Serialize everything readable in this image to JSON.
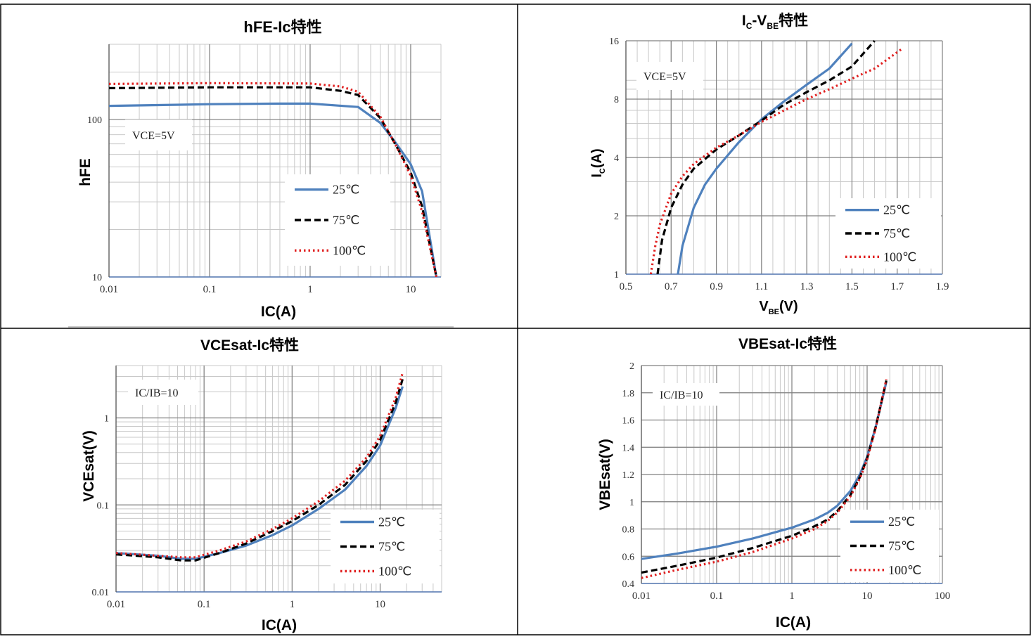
{
  "page": {
    "layout": "2x2 grid of datasheet characteristic curves"
  },
  "chart_data": [
    {
      "id": "hfe",
      "type": "line",
      "title": "hFE-Ic特性",
      "xlabel": "IC(A)",
      "ylabel": "hFE",
      "xscale": "log",
      "yscale": "log",
      "xlim": [
        0.01,
        20
      ],
      "ylim": [
        10,
        300
      ],
      "xticks": [
        0.01,
        0.1,
        1,
        10
      ],
      "xticklabels": [
        "0.01",
        "0.1",
        "1",
        "10"
      ],
      "yticks": [
        10,
        100
      ],
      "yticklabels": [
        "10",
        "100"
      ],
      "grid": true,
      "annotation": "VCE=5V",
      "legend_position": "bottom-right",
      "series": [
        {
          "name": "25℃",
          "color": "#4f81bd",
          "style": "solid",
          "x": [
            0.01,
            0.05,
            0.1,
            0.5,
            1,
            3,
            5,
            7,
            10,
            13,
            18
          ],
          "y": [
            122,
            124,
            125,
            126,
            126,
            120,
            95,
            72,
            52,
            35,
            10
          ]
        },
        {
          "name": "75℃",
          "color": "#000000",
          "style": "dashed",
          "x": [
            0.01,
            0.1,
            1,
            2,
            3,
            5,
            7,
            10,
            13,
            18
          ],
          "y": [
            158,
            160,
            160,
            152,
            143,
            102,
            70,
            46,
            28,
            10
          ]
        },
        {
          "name": "100℃",
          "color": "#e02020",
          "style": "dotted",
          "x": [
            0.01,
            0.1,
            1,
            2,
            3,
            5,
            7,
            10,
            13,
            18
          ],
          "y": [
            168,
            170,
            169,
            162,
            150,
            104,
            70,
            44,
            26,
            10
          ]
        }
      ]
    },
    {
      "id": "ic-vbe",
      "type": "line",
      "title": "Ic-Vbe特性",
      "xlabel": "VBE(V)",
      "ylabel": "Ic(A)",
      "xscale": "linear",
      "yscale": "log",
      "xlim": [
        0.5,
        1.9
      ],
      "ylim": [
        1,
        16
      ],
      "xticks": [
        0.5,
        0.7,
        0.9,
        1.1,
        1.3,
        1.5,
        1.7,
        1.9
      ],
      "xticklabels": [
        "0.5",
        "0.7",
        "0.9",
        "1.1",
        "1.3",
        "1.5",
        "1.7",
        "1.9"
      ],
      "yticks": [
        1,
        2,
        4,
        8,
        16
      ],
      "yticklabels": [
        "1",
        "2",
        "4",
        "8",
        "16"
      ],
      "grid": true,
      "annotation": "VCE=5V",
      "legend_position": "bottom-right",
      "series": [
        {
          "name": "25℃",
          "color": "#4f81bd",
          "style": "solid",
          "x": [
            0.73,
            0.75,
            0.8,
            0.85,
            0.9,
            1.0,
            1.1,
            1.2,
            1.3,
            1.4,
            1.5
          ],
          "y": [
            1.0,
            1.4,
            2.2,
            2.9,
            3.5,
            4.8,
            6.3,
            7.8,
            9.5,
            11.5,
            15.5
          ]
        },
        {
          "name": "75℃",
          "color": "#000000",
          "style": "dashed",
          "x": [
            0.64,
            0.66,
            0.7,
            0.75,
            0.8,
            0.9,
            1.0,
            1.1,
            1.2,
            1.3,
            1.4,
            1.5,
            1.6
          ],
          "y": [
            1.0,
            1.5,
            2.2,
            2.9,
            3.5,
            4.4,
            5.2,
            6.2,
            7.5,
            8.7,
            10.0,
            11.8,
            16
          ]
        },
        {
          "name": "100℃",
          "color": "#e02020",
          "style": "dotted",
          "x": [
            0.61,
            0.63,
            0.65,
            0.7,
            0.75,
            0.8,
            0.9,
            1.0,
            1.1,
            1.2,
            1.3,
            1.4,
            1.5,
            1.6,
            1.72
          ],
          "y": [
            1.0,
            1.4,
            1.8,
            2.6,
            3.2,
            3.7,
            4.5,
            5.2,
            6.1,
            7.0,
            8.0,
            9.0,
            10.2,
            11.5,
            14.5
          ]
        }
      ]
    },
    {
      "id": "vcesat",
      "type": "line",
      "title": "VCEsat-Ic特性",
      "xlabel": "IC(A)",
      "ylabel": "VCEsat(V)",
      "xscale": "log",
      "yscale": "log",
      "xlim": [
        0.01,
        50
      ],
      "ylim": [
        0.01,
        4
      ],
      "xticks": [
        0.01,
        0.1,
        1,
        10
      ],
      "xticklabels": [
        "0.01",
        "0.1",
        "1",
        "10"
      ],
      "yticks": [
        0.01,
        0.1,
        1
      ],
      "yticklabels": [
        "0.01",
        "0.1",
        "1"
      ],
      "grid": true,
      "annotation": "IC/IB=10",
      "legend_position": "bottom-right",
      "series": [
        {
          "name": "25℃",
          "color": "#4f81bd",
          "style": "solid",
          "x": [
            0.01,
            0.03,
            0.055,
            0.08,
            0.15,
            0.3,
            0.6,
            1,
            2,
            4,
            7,
            10,
            15,
            18
          ],
          "y": [
            0.028,
            0.026,
            0.024,
            0.024,
            0.028,
            0.034,
            0.045,
            0.058,
            0.09,
            0.15,
            0.28,
            0.48,
            1.3,
            2.3
          ]
        },
        {
          "name": "75℃",
          "color": "#000000",
          "style": "dashed",
          "x": [
            0.01,
            0.03,
            0.055,
            0.08,
            0.15,
            0.3,
            0.6,
            1,
            2,
            4,
            7,
            10,
            15,
            18
          ],
          "y": [
            0.027,
            0.025,
            0.023,
            0.023,
            0.028,
            0.036,
            0.05,
            0.065,
            0.1,
            0.17,
            0.32,
            0.56,
            1.5,
            2.8
          ]
        },
        {
          "name": "100℃",
          "color": "#e02020",
          "style": "dotted",
          "x": [
            0.01,
            0.03,
            0.055,
            0.08,
            0.15,
            0.3,
            0.6,
            1,
            2,
            4,
            7,
            10,
            15,
            18
          ],
          "y": [
            0.028,
            0.026,
            0.025,
            0.025,
            0.03,
            0.038,
            0.053,
            0.07,
            0.11,
            0.19,
            0.35,
            0.62,
            1.7,
            3.3
          ]
        }
      ]
    },
    {
      "id": "vbesat",
      "type": "line",
      "title": "VBEsat-Ic特性",
      "xlabel": "IC(A)",
      "ylabel": "VBEsat(V)",
      "xscale": "log",
      "yscale": "linear",
      "xlim": [
        0.01,
        100
      ],
      "ylim": [
        0.4,
        2
      ],
      "xticks": [
        0.01,
        0.1,
        1,
        10,
        100
      ],
      "xticklabels": [
        "0.01",
        "0.1",
        "1",
        "10",
        "100"
      ],
      "yticks": [
        0.4,
        0.6,
        0.8,
        1,
        1.2,
        1.4,
        1.6,
        1.8,
        2
      ],
      "yticklabels": [
        "0.4",
        "0.6",
        "0.8",
        "1",
        "1.2",
        "1.4",
        "1.6",
        "1.8",
        "2"
      ],
      "grid": true,
      "annotation": "IC/IB=10",
      "legend_position": "bottom-right",
      "series": [
        {
          "name": "25℃",
          "color": "#4f81bd",
          "style": "solid",
          "x": [
            0.01,
            0.03,
            0.1,
            0.3,
            1,
            2,
            3,
            4,
            6,
            8,
            10,
            13,
            18
          ],
          "y": [
            0.58,
            0.62,
            0.67,
            0.73,
            0.81,
            0.87,
            0.92,
            0.97,
            1.08,
            1.2,
            1.33,
            1.55,
            1.88
          ]
        },
        {
          "name": "75℃",
          "color": "#000000",
          "style": "dashed",
          "x": [
            0.01,
            0.03,
            0.1,
            0.3,
            1,
            2,
            3,
            4,
            6,
            8,
            10,
            13,
            18
          ],
          "y": [
            0.48,
            0.53,
            0.59,
            0.66,
            0.75,
            0.82,
            0.87,
            0.93,
            1.05,
            1.18,
            1.32,
            1.55,
            1.89
          ]
        },
        {
          "name": "100℃",
          "color": "#e02020",
          "style": "dotted",
          "x": [
            0.01,
            0.03,
            0.1,
            0.3,
            1,
            2,
            3,
            4,
            6,
            8,
            10,
            13,
            18
          ],
          "y": [
            0.44,
            0.5,
            0.56,
            0.63,
            0.73,
            0.8,
            0.86,
            0.92,
            1.04,
            1.17,
            1.31,
            1.54,
            1.9
          ]
        }
      ]
    }
  ]
}
